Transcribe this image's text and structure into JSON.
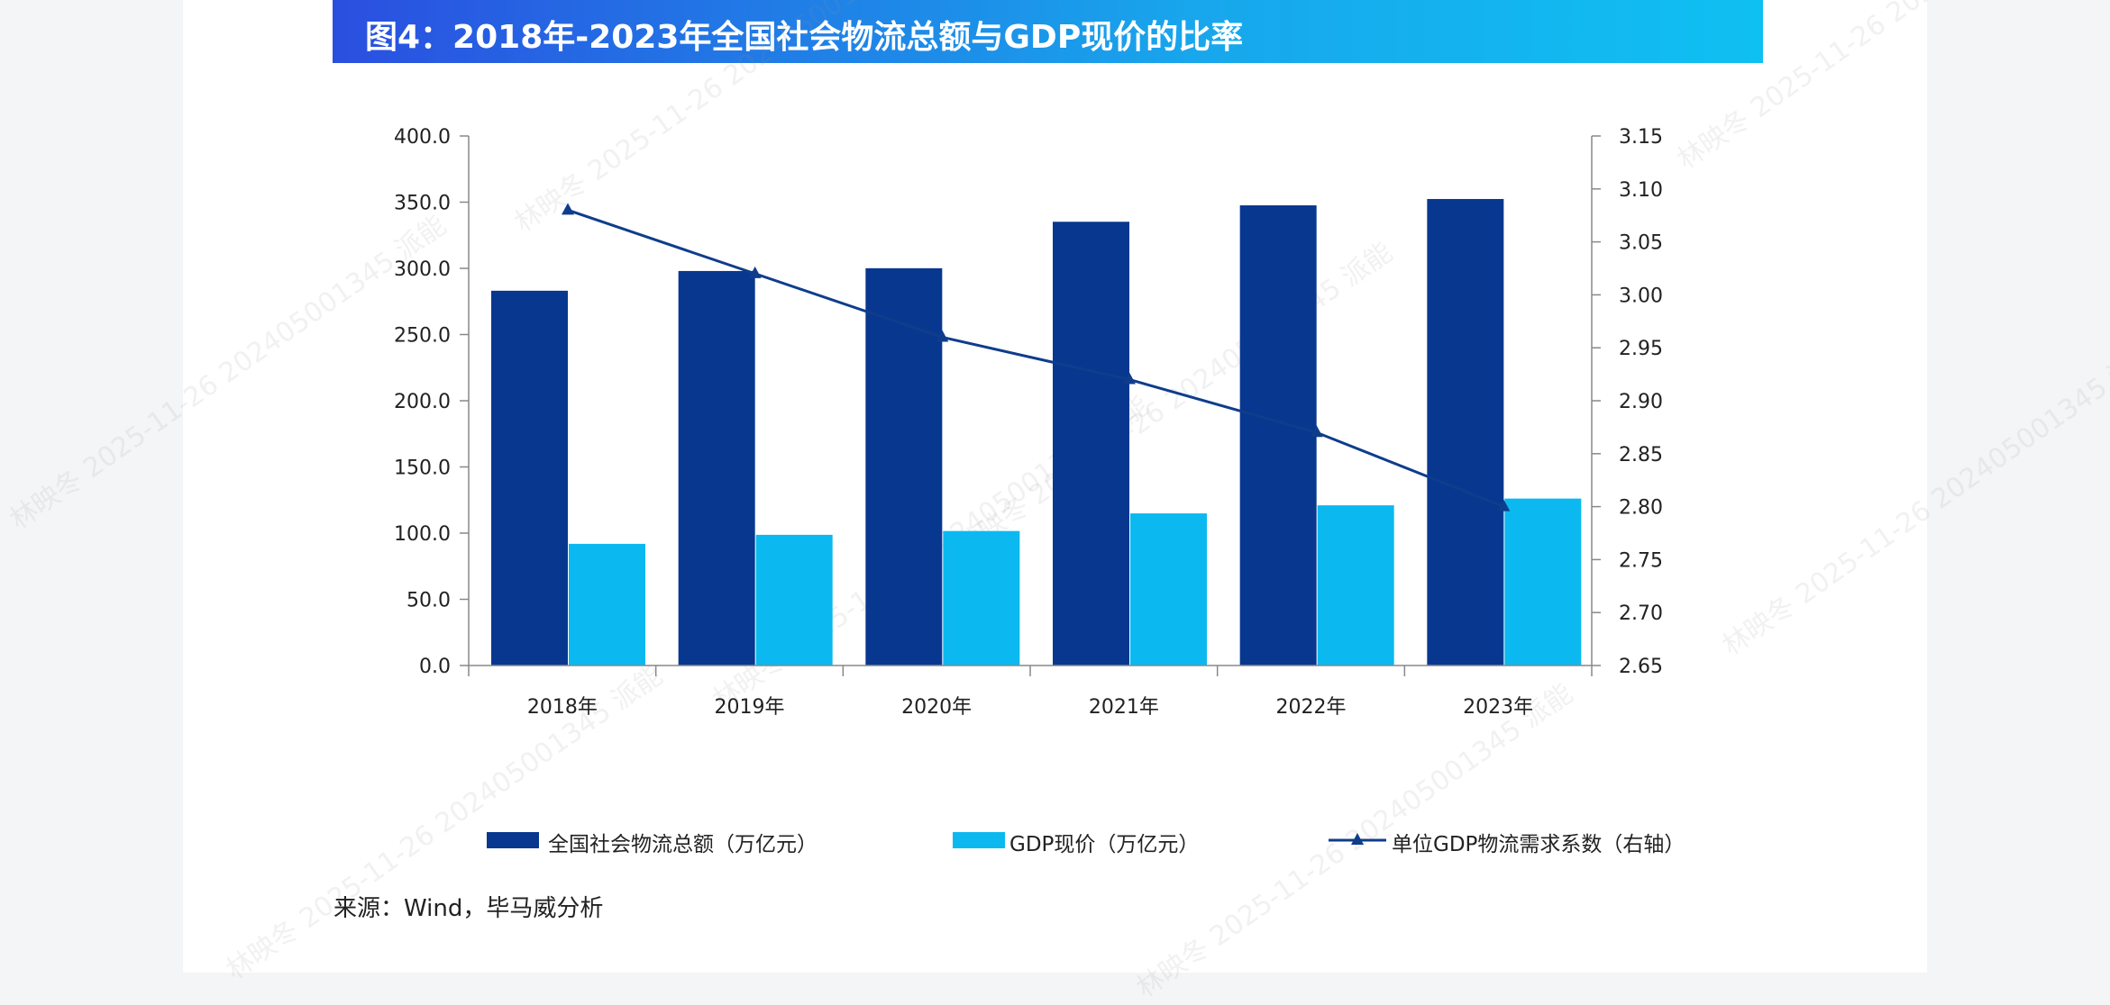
{
  "title": "图4：2018年-2023年全国社会物流总额与GDP现价的比率",
  "source": "来源：Wind，毕马威分析",
  "watermark": "林映冬 2025-11-26 202405001345 派能",
  "colors": {
    "total_logistics": "#08378f",
    "gdp": "#0bb9f0",
    "ratio": "#0f3d8c"
  },
  "chart_data": {
    "type": "bar",
    "categories": [
      "2018年",
      "2019年",
      "2020年",
      "2021年",
      "2022年",
      "2023年"
    ],
    "series": [
      {
        "name": "全国社会物流总额（万亿元）",
        "type": "bar",
        "axis": "left",
        "values": [
          283.1,
          298.0,
          300.1,
          335.2,
          347.6,
          352.4
        ]
      },
      {
        "name": "GDP现价（万亿元）",
        "type": "bar",
        "axis": "left",
        "values": [
          91.9,
          98.7,
          101.6,
          114.9,
          121.0,
          126.1
        ]
      },
      {
        "name": "单位GDP物流需求系数（右轴）",
        "type": "line",
        "marker": "triangle",
        "axis": "right",
        "values": [
          3.08,
          3.02,
          2.96,
          2.92,
          2.87,
          2.8
        ]
      }
    ],
    "y_left": {
      "range": [
        0,
        400
      ],
      "ticks": [
        "0.0",
        "50.0",
        "100.0",
        "150.0",
        "200.0",
        "250.0",
        "300.0",
        "350.0",
        "400.0"
      ]
    },
    "y_right": {
      "range": [
        2.65,
        3.15
      ],
      "ticks": [
        "2.65",
        "2.70",
        "2.75",
        "2.80",
        "2.85",
        "2.90",
        "2.95",
        "3.00",
        "3.05",
        "3.10",
        "3.15"
      ]
    },
    "grid": false,
    "legend": "bottom"
  }
}
